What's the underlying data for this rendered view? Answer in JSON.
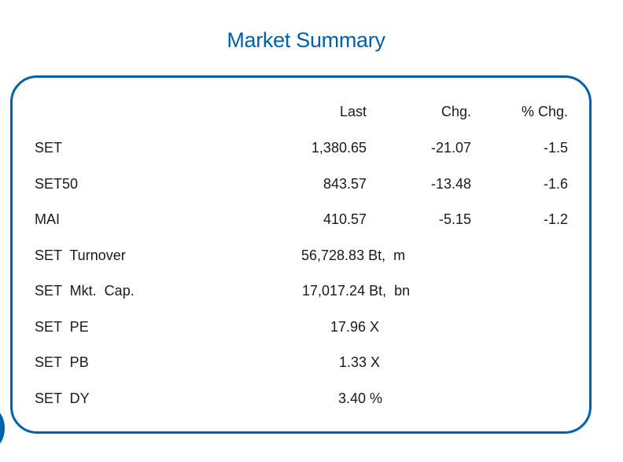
{
  "title": "Market Summary",
  "headers": {
    "last": "Last",
    "chg": "Chg.",
    "pct_chg": "% Chg."
  },
  "indices": [
    {
      "name": "SET",
      "last": "1,380.65",
      "chg": "-21.07",
      "pct_chg": "-1.5"
    },
    {
      "name": "SET50",
      "last": "843.57",
      "chg": "-13.48",
      "pct_chg": "-1.6"
    },
    {
      "name": "MAI",
      "last": "410.57",
      "chg": "-5.15",
      "pct_chg": "-1.2"
    }
  ],
  "stats": [
    {
      "name": "SET  Turnover",
      "value": "56,728.83 Bt,  m"
    },
    {
      "name": "SET  Mkt.  Cap.",
      "value": "17,017.24 Bt,  bn"
    },
    {
      "name": "SET  PE",
      "value": "17.96 X"
    },
    {
      "name": "SET  PB",
      "value": "1.33 X"
    },
    {
      "name": "SET  DY",
      "value": "3.40 %"
    }
  ],
  "colors": {
    "title": "#0060a8",
    "border": "#0062ad",
    "text": "#1a1a1a"
  }
}
